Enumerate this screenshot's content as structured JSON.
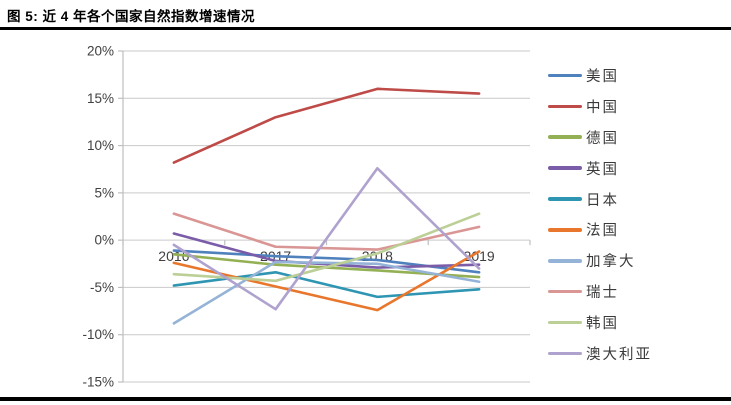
{
  "figure": {
    "title": "图 5: 近 4 年各个国家自然指数增速情况"
  },
  "chart_data": {
    "type": "line",
    "title": "近4年各个国家自然指数增速情况",
    "categories": [
      "2016",
      "2017",
      "2018",
      "2019"
    ],
    "series": [
      {
        "name": "美国",
        "color": "#4F81BD",
        "values": [
          -1.1,
          -1.7,
          -2.1,
          -3.4
        ]
      },
      {
        "name": "中国",
        "color": "#BE4B48",
        "values": [
          8.2,
          13.0,
          16.0,
          15.5
        ]
      },
      {
        "name": "德国",
        "color": "#94B054",
        "values": [
          -1.5,
          -2.6,
          -3.2,
          -3.9
        ]
      },
      {
        "name": "英国",
        "color": "#7A5CA8",
        "values": [
          0.7,
          -2.2,
          -2.9,
          -2.6
        ]
      },
      {
        "name": "日本",
        "color": "#2E95B2",
        "values": [
          -4.8,
          -3.4,
          -6.0,
          -5.2
        ]
      },
      {
        "name": "法国",
        "color": "#E8762C",
        "values": [
          -2.4,
          -4.9,
          -7.4,
          -1.2
        ]
      },
      {
        "name": "加拿大",
        "color": "#95B3D7",
        "values": [
          -8.8,
          -2.3,
          -2.5,
          -4.4
        ]
      },
      {
        "name": "瑞士",
        "color": "#D99694",
        "values": [
          2.8,
          -0.7,
          -1.0,
          1.4
        ]
      },
      {
        "name": "韩国",
        "color": "#BCCF96",
        "values": [
          -3.6,
          -4.3,
          -1.4,
          2.8
        ]
      },
      {
        "name": "澳大利亚",
        "color": "#AFA2CE",
        "values": [
          -0.5,
          -7.3,
          7.6,
          -3.0
        ]
      }
    ],
    "ylim": [
      -15,
      20
    ],
    "ytick_step": 5,
    "ytick_labels": [
      "20%",
      "15%",
      "10%",
      "5%",
      "0%",
      "-5%",
      "-10%",
      "-15%"
    ],
    "xlabel": "",
    "ylabel": "",
    "grid": true,
    "legend_position": "right",
    "style": {
      "grid_color": "#C9C9C9",
      "axis_color": "#BFBFBF",
      "tick_label_color": "#404040",
      "rule_color": "#000000",
      "background": "#FFFFFF"
    }
  }
}
